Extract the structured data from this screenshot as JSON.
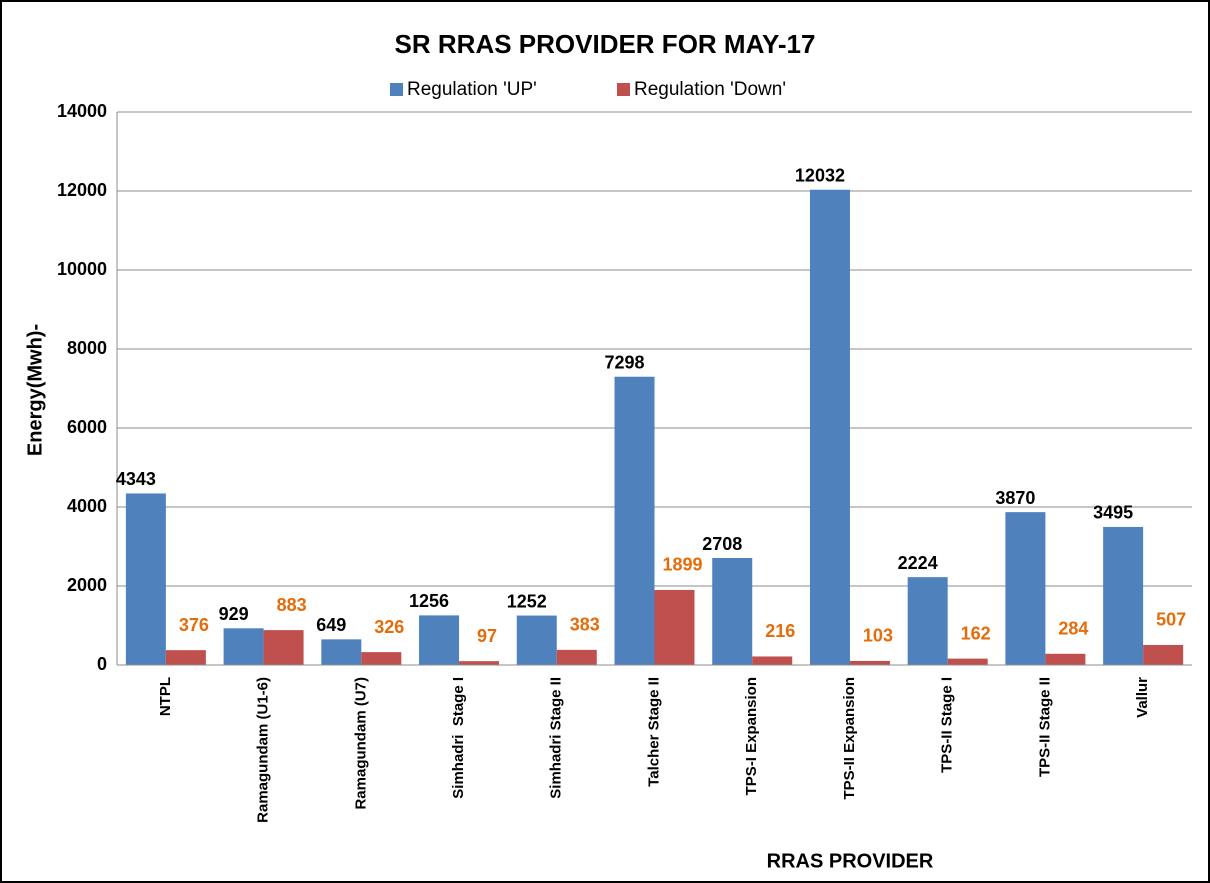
{
  "chart_data": {
    "type": "bar",
    "title": "SR RRAS PROVIDER FOR MAY-17",
    "x_label": "RRAS PROVIDER",
    "y_label": "Energy(Mwh)-",
    "categories": [
      "NTPL",
      "Ramagundam (U1-6)",
      "Ramagundam (U7)",
      "Simhadri  Stage I",
      "Simhadri Stage II",
      "Talcher Stage II",
      "TPS-I Expansion",
      "TPS-II Expansion",
      "TPS-II Stage I",
      "TPS-II Stage II",
      "Vallur"
    ],
    "series": [
      {
        "name": "Regulation 'UP'",
        "color": "#4f81bd",
        "label_color": "#000000",
        "values": [
          4343,
          929,
          649,
          1256,
          1252,
          7298,
          2708,
          12032,
          2224,
          3870,
          3495
        ]
      },
      {
        "name": "Regulation 'Down'",
        "color": "#c0504d",
        "label_color": "#e46c0a",
        "values": [
          376,
          883,
          326,
          97,
          383,
          1899,
          216,
          103,
          162,
          284,
          507
        ]
      }
    ],
    "ylim": [
      0,
      14000
    ],
    "yticks": [
      0,
      2000,
      4000,
      6000,
      8000,
      10000,
      12000,
      14000
    ],
    "grid": true,
    "legend": "top"
  }
}
